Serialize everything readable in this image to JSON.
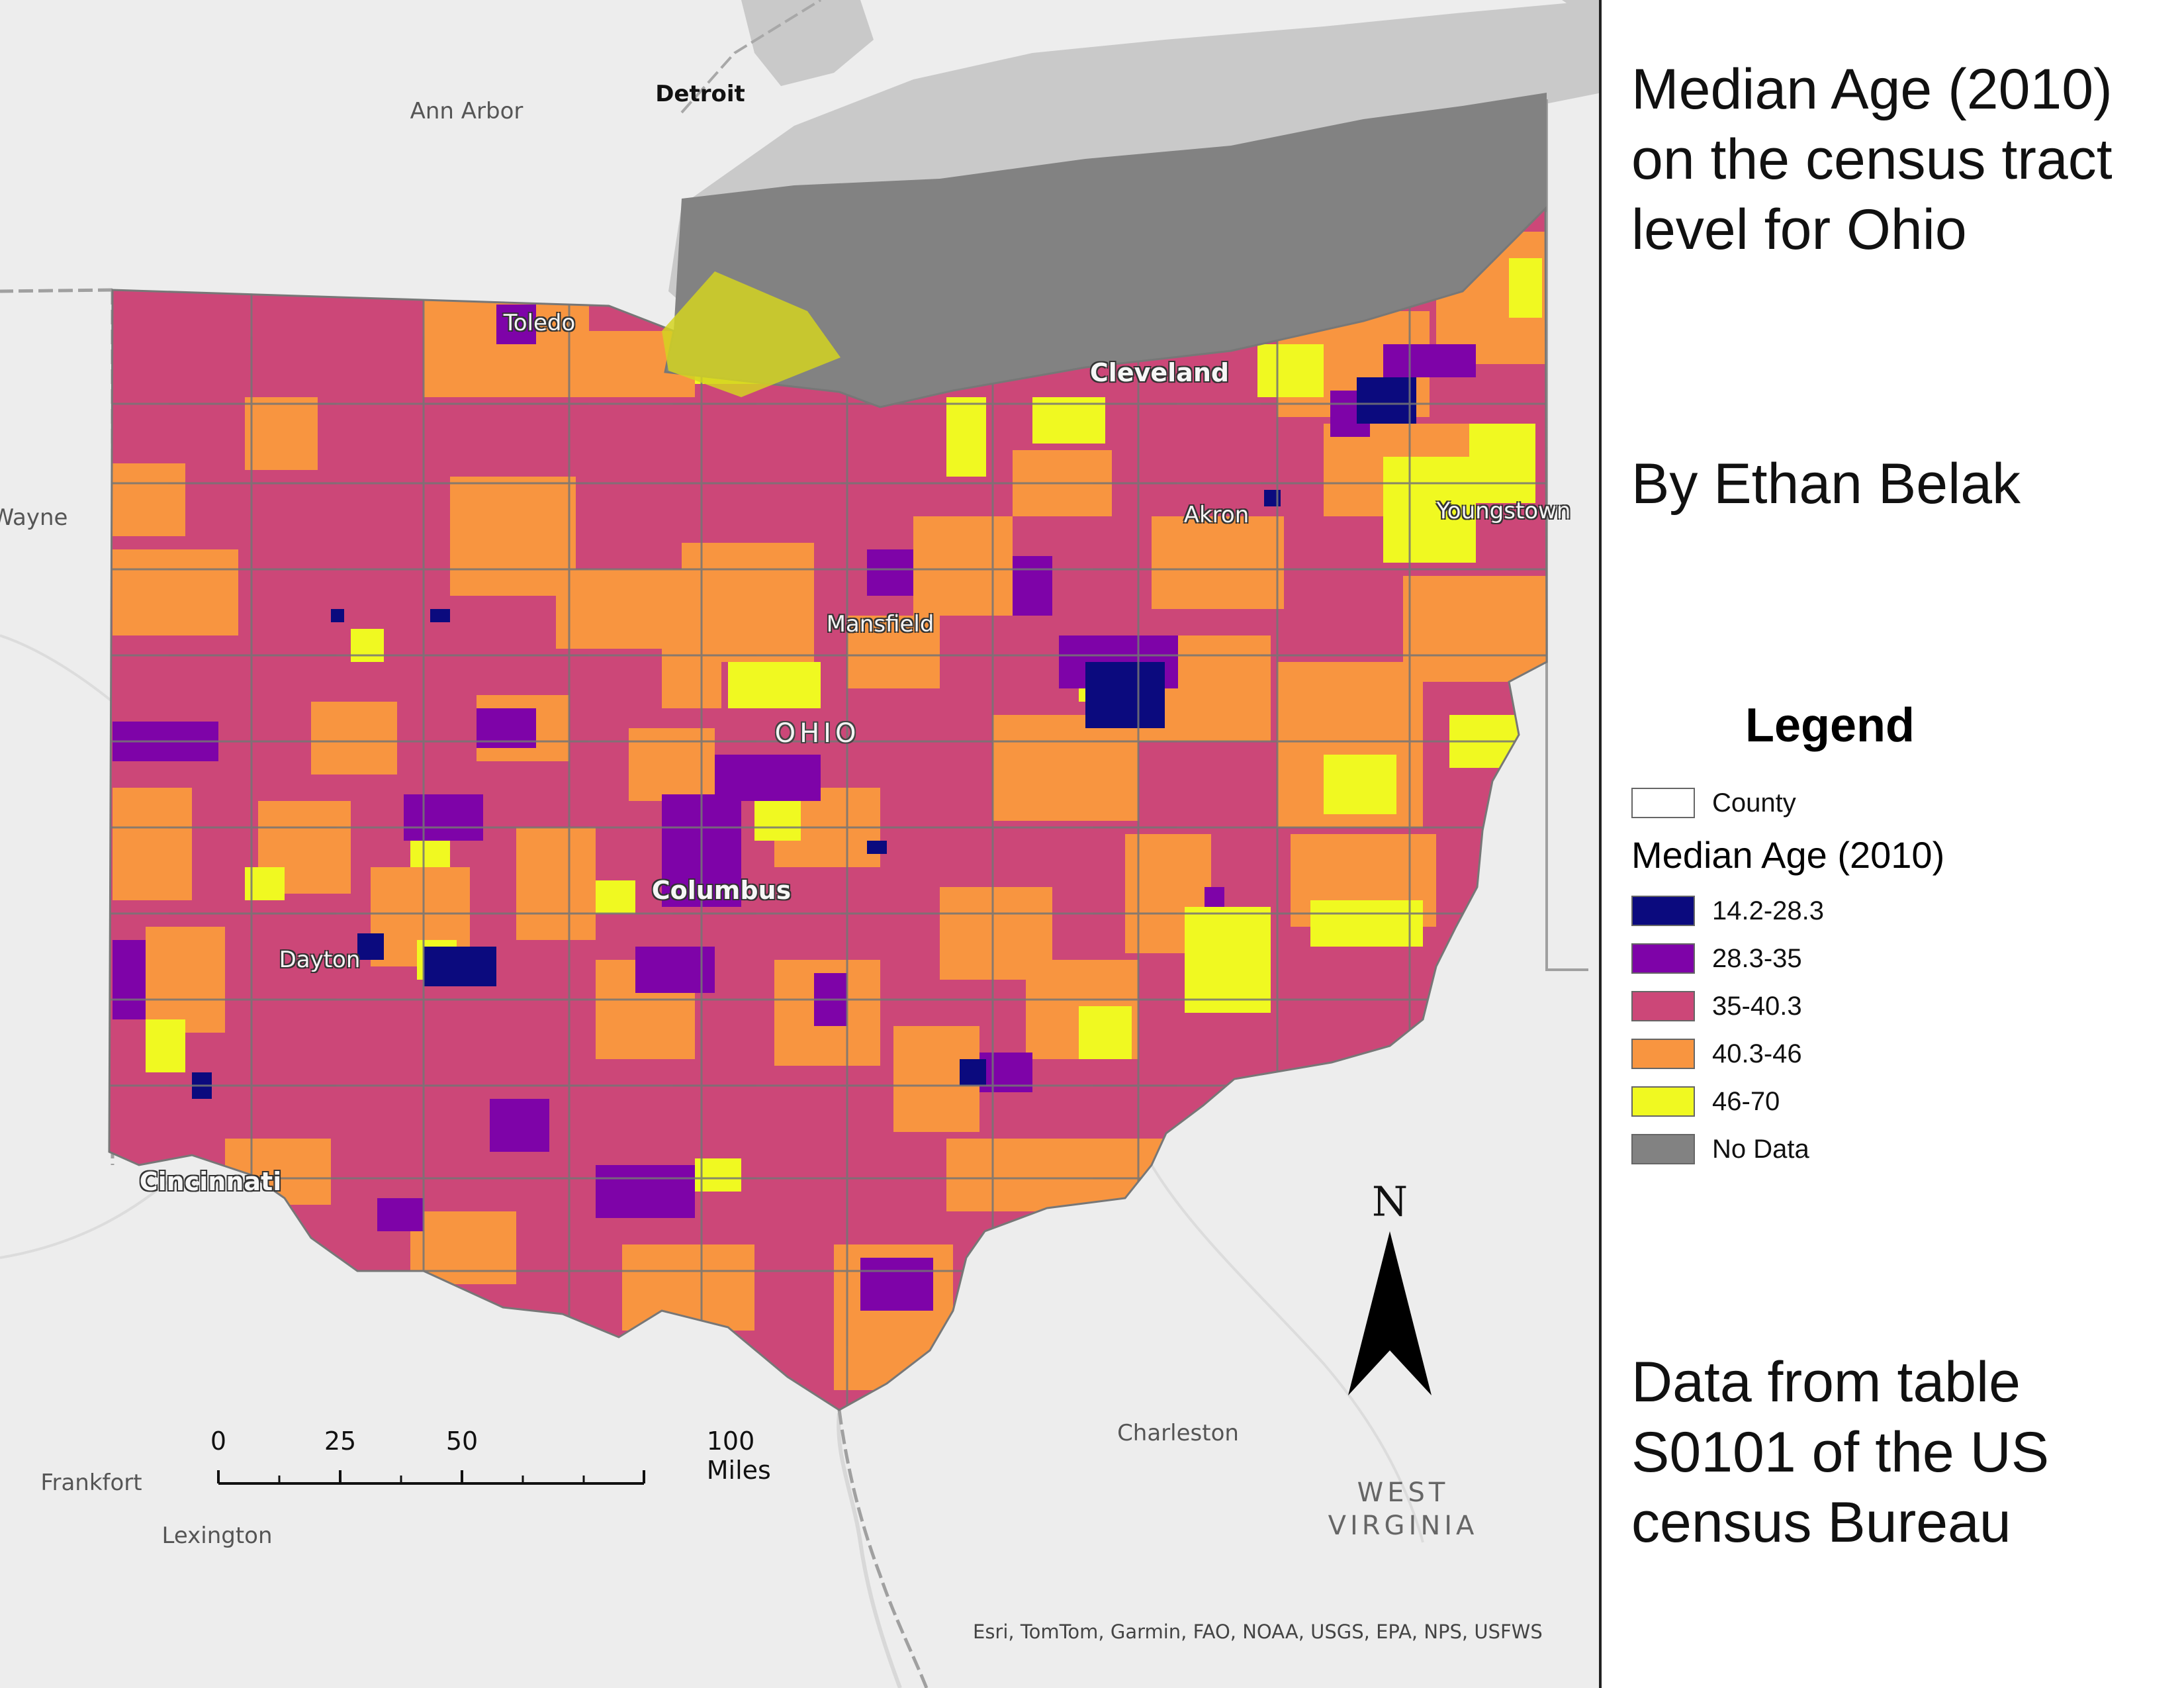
{
  "title": "Median Age (2010) on the census tract level for Ohio",
  "author": "By Ethan Belak",
  "source_note": "Data from table S0101 of the US census Bureau",
  "legend": {
    "title": "Legend",
    "county_label": "County",
    "group_title": "Median Age (2010)",
    "classes": [
      {
        "label": "14.2-28.3",
        "color": "#0b0a7e"
      },
      {
        "label": "28.3-35",
        "color": "#7e03a8"
      },
      {
        "label": "35-40.3",
        "color": "#cc4778"
      },
      {
        "label": "40.3-46",
        "color": "#f89540"
      },
      {
        "label": "46-70",
        "color": "#f0f921"
      },
      {
        "label": "No Data",
        "color": "#828282"
      }
    ]
  },
  "map": {
    "place_labels": {
      "detroit": "Detroit",
      "ann_arbor": "Ann Arbor",
      "wayne": "Wayne",
      "toledo": "Toledo",
      "cleveland": "Cleveland",
      "akron": "Akron",
      "youngstown": "Youngstown",
      "mansfield": "Mansfield",
      "ohio": "OHIO",
      "columbus": "Columbus",
      "dayton": "Dayton",
      "cincinnati": "Cincinnati",
      "frankfort": "Frankfort",
      "lexington": "Lexington",
      "charleston": "Charleston",
      "west_virginia": "WEST VIRGINIA"
    },
    "attribution": "Esri, TomTom, Garmin, FAO, NOAA, USGS, EPA, NPS, USFWS",
    "scale_bar": {
      "ticks": [
        "0",
        "25",
        "50",
        "100 Miles"
      ]
    },
    "north_label": "N"
  }
}
